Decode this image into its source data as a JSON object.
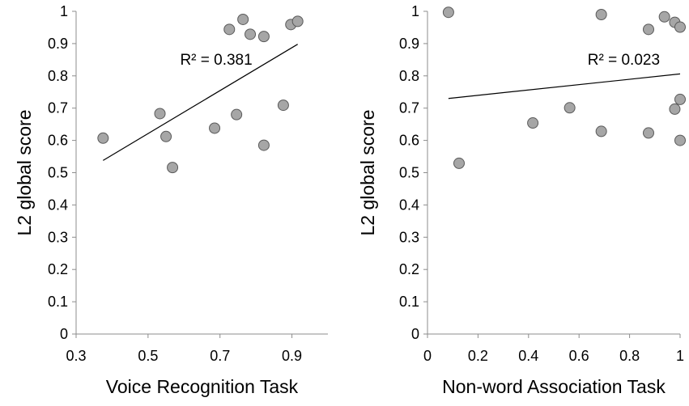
{
  "chart_data": [
    {
      "type": "scatter",
      "xlabel": "Voice Recognition Task",
      "ylabel": "L2 global score",
      "xlim": [
        0.3,
        1.0
      ],
      "ylim": [
        0,
        1
      ],
      "xticks": [
        "0.3",
        "0.5",
        "0.7",
        "0.9"
      ],
      "xtick_values": [
        0.3,
        0.5,
        0.7,
        0.9
      ],
      "yticks": [
        "0",
        "0.1",
        "0.2",
        "0.3",
        "0.4",
        "0.5",
        "0.6",
        "0.7",
        "0.8",
        "0.9",
        "1"
      ],
      "ytick_values": [
        0,
        0.1,
        0.2,
        0.3,
        0.4,
        0.5,
        0.6,
        0.7,
        0.8,
        0.9,
        1
      ],
      "grid": false,
      "marker_color": "#a6a6a6",
      "points": [
        {
          "x": 0.375,
          "y": 0.607
        },
        {
          "x": 0.533,
          "y": 0.683
        },
        {
          "x": 0.55,
          "y": 0.612
        },
        {
          "x": 0.568,
          "y": 0.516
        },
        {
          "x": 0.685,
          "y": 0.638
        },
        {
          "x": 0.726,
          "y": 0.944
        },
        {
          "x": 0.746,
          "y": 0.68
        },
        {
          "x": 0.764,
          "y": 0.975
        },
        {
          "x": 0.784,
          "y": 0.929
        },
        {
          "x": 0.822,
          "y": 0.585
        },
        {
          "x": 0.822,
          "y": 0.922
        },
        {
          "x": 0.876,
          "y": 0.709
        },
        {
          "x": 0.897,
          "y": 0.959
        },
        {
          "x": 0.916,
          "y": 0.969
        }
      ],
      "trendline": {
        "x": [
          0.375,
          0.916
        ],
        "y": [
          0.538,
          0.898
        ]
      },
      "annotation": "R² = 0.381"
    },
    {
      "type": "scatter",
      "xlabel": "Non-word Association Task",
      "ylabel": "L2 global score",
      "xlim": [
        0,
        1
      ],
      "ylim": [
        0,
        1
      ],
      "xticks": [
        "0",
        "0.2",
        "0.4",
        "0.6",
        "0.8",
        "1"
      ],
      "xtick_values": [
        0,
        0.2,
        0.4,
        0.6,
        0.8,
        1
      ],
      "yticks": [
        "0",
        "0.1",
        "0.2",
        "0.3",
        "0.4",
        "0.5",
        "0.6",
        "0.7",
        "0.8",
        "0.9",
        "1"
      ],
      "ytick_values": [
        0,
        0.1,
        0.2,
        0.3,
        0.4,
        0.5,
        0.6,
        0.7,
        0.8,
        0.9,
        1
      ],
      "grid": false,
      "marker_color": "#a6a6a6",
      "points": [
        {
          "x": 0.083,
          "y": 0.997
        },
        {
          "x": 0.125,
          "y": 0.529
        },
        {
          "x": 0.417,
          "y": 0.654
        },
        {
          "x": 0.563,
          "y": 0.701
        },
        {
          "x": 0.688,
          "y": 0.99
        },
        {
          "x": 0.688,
          "y": 0.628
        },
        {
          "x": 0.875,
          "y": 0.944
        },
        {
          "x": 0.875,
          "y": 0.623
        },
        {
          "x": 0.938,
          "y": 0.983
        },
        {
          "x": 0.979,
          "y": 0.966
        },
        {
          "x": 0.979,
          "y": 0.697
        },
        {
          "x": 1.0,
          "y": 0.951
        },
        {
          "x": 1.0,
          "y": 0.727
        },
        {
          "x": 1.0,
          "y": 0.6
        }
      ],
      "trendline": {
        "x": [
          0.083,
          1.0
        ],
        "y": [
          0.73,
          0.806
        ]
      },
      "annotation": "R² = 0.023"
    }
  ]
}
